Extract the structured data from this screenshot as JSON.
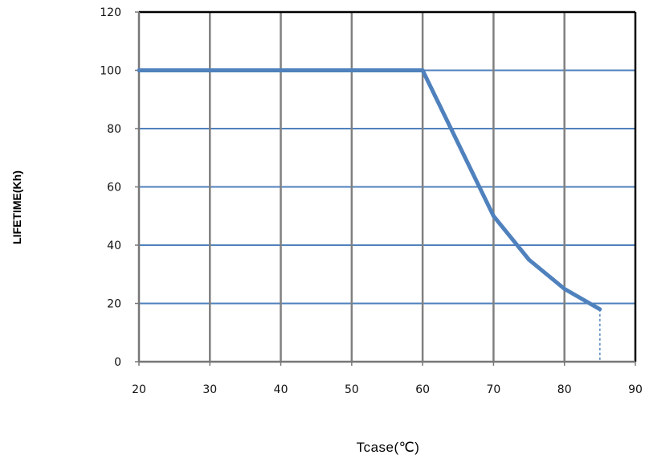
{
  "chart_data": {
    "type": "line",
    "title": "",
    "xlabel": "Tcase(℃)",
    "ylabel": "LIFETIME(Kh)",
    "xlim": [
      20,
      90
    ],
    "ylim": [
      0,
      120
    ],
    "xticks": [
      20,
      30,
      40,
      50,
      60,
      70,
      80,
      90
    ],
    "yticks": [
      0,
      20,
      40,
      60,
      80,
      100,
      120
    ],
    "grid": true,
    "series": [
      {
        "color": "#4F81BD",
        "x": [
          20,
          60,
          70,
          75,
          80,
          85
        ],
        "y": [
          100,
          100,
          50,
          35,
          25,
          18
        ]
      }
    ],
    "annotations": [
      {
        "type": "dashed-vertical-drop",
        "x": 85,
        "y_from": 18,
        "y_to": 0,
        "color": "#4F81BD"
      }
    ],
    "colors": {
      "series": "#4F81BD",
      "vgrid": "#808080",
      "hgrid": "#4F81BD",
      "axis": "#000000"
    }
  }
}
